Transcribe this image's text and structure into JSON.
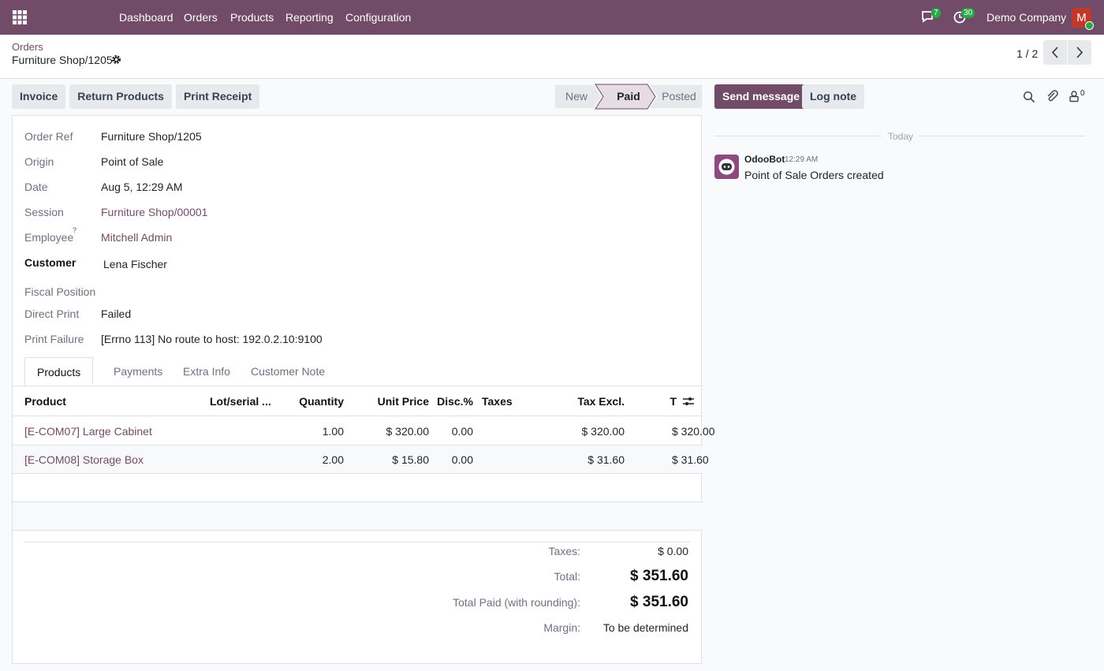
{
  "navbar": {
    "menu": [
      "Dashboard",
      "Orders",
      "Products",
      "Reporting",
      "Configuration"
    ],
    "messages_badge": "7",
    "activities_badge": "30",
    "company": "Demo Company",
    "avatar": "M"
  },
  "breadcrumb": {
    "parent": "Orders",
    "current": "Furniture Shop/1205",
    "pager": "1 / 2"
  },
  "actions": [
    "Invoice",
    "Return Products",
    "Print Receipt"
  ],
  "statusbar": {
    "stages": [
      "New",
      "Paid",
      "Posted"
    ],
    "active": 1
  },
  "form": {
    "fields": [
      {
        "label": "Order Ref",
        "value": "Furniture Shop/1205"
      },
      {
        "label": "Origin",
        "value": "Point of Sale"
      },
      {
        "label": "Date",
        "value": "Aug 5, 12:29 AM"
      },
      {
        "label": "Session",
        "value": "Furniture Shop/00001",
        "link": true
      },
      {
        "label": "Employee",
        "help": "?",
        "value": "Mitchell Admin",
        "link": true
      },
      {
        "label": "Customer",
        "value": "Lena Fischer",
        "bold": true
      },
      {
        "label": "Fiscal Position"
      },
      {
        "label": "Direct Print",
        "value": "Failed"
      },
      {
        "label": "Print Failure",
        "value": "[Errno 113] No route to host: 192.0.2.10:9100"
      }
    ],
    "tabs": [
      "Products",
      "Payments",
      "Extra Info",
      "Customer Note"
    ],
    "table": {
      "columns": [
        "Product",
        "Lot/serial ...",
        "Quantity",
        "Unit Price",
        "Disc.%",
        "Taxes",
        "Tax Excl.",
        "T"
      ],
      "rows": [
        [
          "[E-COM07] Large Cabinet",
          null,
          "1.00",
          "$ 320.00",
          "0.00",
          null,
          "$ 320.00",
          "$ 320.00"
        ],
        [
          "[E-COM08] Storage Box",
          null,
          "2.00",
          "$ 15.80",
          "0.00",
          null,
          "$ 31.60",
          "$ 31.60"
        ]
      ]
    },
    "totals": [
      {
        "label": "Taxes:",
        "value": "$ 0.00"
      },
      {
        "label": "Total:",
        "value": "$ 351.60",
        "big": true
      },
      {
        "label": "Total Paid (with rounding):",
        "value": "$ 351.60",
        "big": true
      },
      {
        "label": "Margin:",
        "value": "To be determined"
      }
    ]
  },
  "chatter": {
    "buttons": [
      "Send message",
      "Log note"
    ],
    "follower_count": "0",
    "date_separator": "Today",
    "messages": [
      {
        "author": "OdooBot",
        "time": "12:29 AM",
        "body": "Point of Sale Orders created"
      }
    ]
  }
}
